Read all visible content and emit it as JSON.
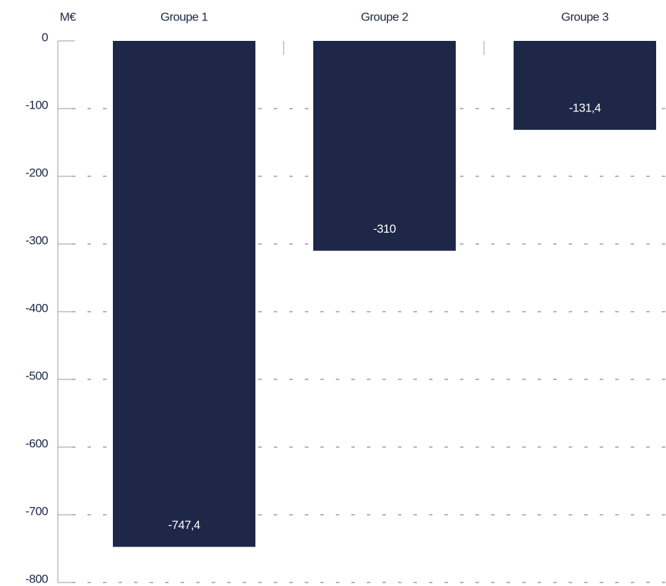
{
  "chart_data": {
    "type": "bar",
    "y_label": "M€",
    "categories": [
      "Groupe 1",
      "Groupe 2",
      "Groupe 3"
    ],
    "values": [
      -747.4,
      -310,
      -131.4
    ],
    "value_labels": [
      "-747,4",
      "-310",
      "-131,4"
    ],
    "color": "#1e2747",
    "ylim": [
      -800,
      0
    ],
    "yticks": [
      0,
      -100,
      -200,
      -300,
      -400,
      -500,
      -600,
      -700,
      -800
    ],
    "grid": true
  }
}
